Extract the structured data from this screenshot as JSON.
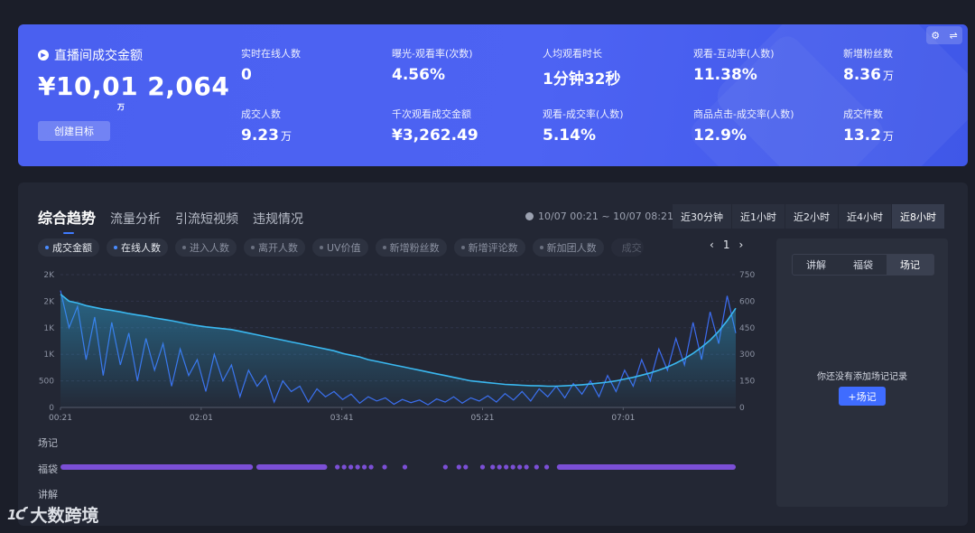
{
  "banner": {
    "gmv_title": "直播间成交金额",
    "gmv_value": "¥10,01 2,064",
    "gmv_unit": "万",
    "create_goal": "创建目标",
    "tools": [
      "⚙",
      "⇌"
    ],
    "metrics": [
      {
        "label": "实时在线人数",
        "value": "0",
        "unit": ""
      },
      {
        "label": "曝光-观看率(次数)",
        "value": "4.56%",
        "unit": ""
      },
      {
        "label": "人均观看时长",
        "value": "1分钟32秒",
        "unit": ""
      },
      {
        "label": "观看-互动率(人数)",
        "value": "11.38%",
        "unit": ""
      },
      {
        "label": "新增粉丝数",
        "value": "8.36",
        "unit": "万"
      },
      {
        "label": "成交人数",
        "value": "9.23",
        "unit": "万"
      },
      {
        "label": "千次观看成交金额",
        "value": "¥3,262.49",
        "unit": ""
      },
      {
        "label": "观看-成交率(人数)",
        "value": "5.14%",
        "unit": ""
      },
      {
        "label": "商品点击-成交率(人数)",
        "value": "12.9%",
        "unit": ""
      },
      {
        "label": "成交件数",
        "value": "13.2",
        "unit": "万"
      }
    ]
  },
  "panel": {
    "tabs": [
      "综合趋势",
      "流量分析",
      "引流短视频",
      "违规情况"
    ],
    "time_range": "10/07 00:21 ~ 10/07 08:21",
    "range_buttons": [
      "近30分钟",
      "近1小时",
      "近2小时",
      "近4小时",
      "近8小时"
    ],
    "active_range": "近8小时",
    "chips": [
      {
        "label": "成交金额",
        "on": true
      },
      {
        "label": "在线人数",
        "on": true
      },
      {
        "label": "进入人数",
        "on": false
      },
      {
        "label": "离开人数",
        "on": false
      },
      {
        "label": "UV价值",
        "on": false
      },
      {
        "label": "新增粉丝数",
        "on": false
      },
      {
        "label": "新增评论数",
        "on": false
      },
      {
        "label": "新加团人数",
        "on": false
      },
      {
        "label": "成交",
        "on": false
      }
    ],
    "pager": {
      "prev": "‹",
      "page": "1",
      "next": "›"
    },
    "tracks": [
      "场记",
      "福袋",
      "讲解"
    ],
    "side": {
      "tabs": [
        "讲解",
        "福袋",
        "场记"
      ],
      "active_tab": "场记",
      "empty_text": "你还没有添加场记记录",
      "add_button": "+场记"
    }
  },
  "watermark": {
    "logo": "1Ƈ",
    "text": "大数跨境"
  },
  "chart_data": {
    "type": "line",
    "x_ticks": [
      "00:21",
      "02:01",
      "03:41",
      "05:21",
      "07:01"
    ],
    "left_axis_ticks": [
      "0",
      "500",
      "1K",
      "1K",
      "2K",
      "2K"
    ],
    "right_axis_ticks": [
      "0",
      "150",
      "300",
      "450",
      "600",
      "750"
    ],
    "ylim_left": [
      0,
      2500
    ],
    "ylim_right": [
      0,
      750
    ],
    "series": [
      {
        "name": "成交金额",
        "axis": "left",
        "color": "#3c6cf0",
        "values": [
          2200,
          1500,
          1900,
          900,
          1700,
          600,
          1600,
          800,
          1400,
          500,
          1300,
          700,
          1200,
          400,
          1100,
          600,
          900,
          300,
          1000,
          500,
          800,
          200,
          700,
          400,
          600,
          100,
          500,
          300,
          400,
          100,
          350,
          200,
          300,
          150,
          250,
          80,
          200,
          120,
          180,
          60,
          150,
          90,
          140,
          50,
          160,
          100,
          200,
          80,
          180,
          120,
          220,
          100,
          260,
          140,
          300,
          120,
          350,
          200,
          400,
          180,
          450,
          250,
          500,
          200,
          600,
          300,
          700,
          400,
          900,
          500,
          1100,
          700,
          1300,
          800,
          1600,
          900,
          1800,
          1200,
          2100,
          1400
        ]
      },
      {
        "name": "在线人数",
        "axis": "right",
        "color": "#3ab8f0",
        "values": [
          640,
          600,
          590,
          575,
          565,
          555,
          548,
          540,
          530,
          522,
          515,
          505,
          498,
          490,
          480,
          470,
          462,
          455,
          450,
          445,
          440,
          430,
          420,
          410,
          400,
          390,
          380,
          370,
          360,
          350,
          340,
          330,
          320,
          305,
          295,
          285,
          270,
          260,
          250,
          240,
          230,
          220,
          210,
          200,
          190,
          180,
          170,
          160,
          150,
          145,
          140,
          135,
          130,
          128,
          125,
          123,
          122,
          120,
          120,
          122,
          125,
          128,
          132,
          137,
          143,
          150,
          160,
          170,
          182,
          195,
          210,
          228,
          250,
          275,
          305,
          340,
          380,
          430,
          490,
          560
        ]
      }
    ]
  },
  "bag_track": {
    "segments": [
      [
        0.0,
        0.285
      ],
      [
        0.29,
        0.395
      ],
      [
        0.735,
        1.0
      ]
    ],
    "dots": [
      0.41,
      0.42,
      0.43,
      0.44,
      0.45,
      0.46,
      0.48,
      0.51,
      0.57,
      0.59,
      0.6,
      0.625,
      0.64,
      0.65,
      0.66,
      0.67,
      0.68,
      0.69,
      0.705,
      0.72
    ]
  }
}
